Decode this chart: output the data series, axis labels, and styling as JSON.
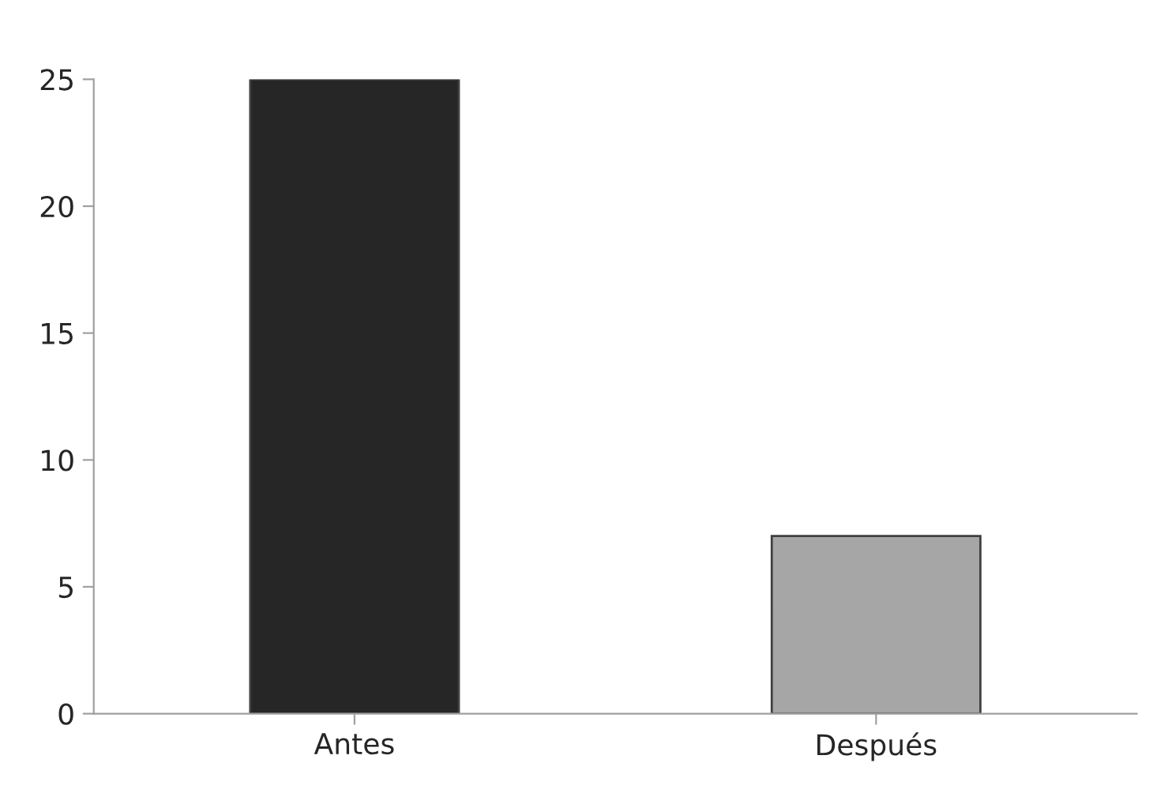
{
  "chart_data": {
    "type": "bar",
    "categories": [
      "Antes",
      "Después"
    ],
    "values": [
      25,
      7
    ],
    "colors": [
      "#262626",
      "#a6a6a6"
    ],
    "ylim": [
      0,
      25
    ],
    "yticks": [
      0,
      5,
      10,
      15,
      20,
      25
    ],
    "grid": false
  }
}
